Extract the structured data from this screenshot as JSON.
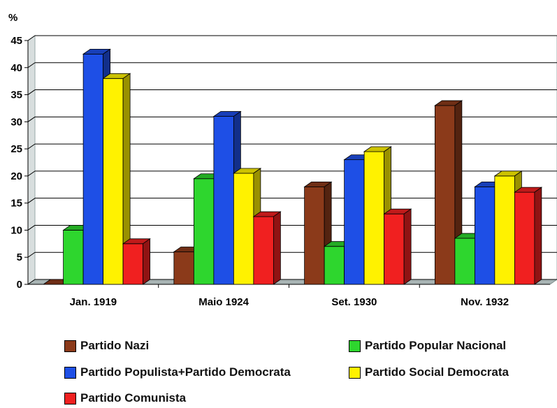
{
  "chart_data": {
    "type": "bar",
    "title": "",
    "ylabel": "%",
    "xlabel": "",
    "ylim": [
      0,
      45
    ],
    "yticks": [
      0,
      5,
      10,
      15,
      20,
      25,
      30,
      35,
      40,
      45
    ],
    "grid": true,
    "legend_position": "bottom",
    "categories": [
      "Jan. 1919",
      "Maio 1924",
      "Set. 1930",
      "Nov. 1932"
    ],
    "series": [
      {
        "name": "Partido Nazi",
        "color": "#8B3A1A",
        "values": [
          0,
          6,
          18,
          33
        ]
      },
      {
        "name": "Partido Popular Nacional",
        "color": "#2ED62E",
        "values": [
          10,
          19.5,
          7,
          8.5
        ]
      },
      {
        "name": "Partido Populista+Partido Democrata",
        "color": "#1E4FE6",
        "values": [
          42.5,
          31,
          23,
          18
        ]
      },
      {
        "name": "Partido Social Democrata",
        "color": "#FFF200",
        "values": [
          38,
          20.5,
          24.5,
          20
        ]
      },
      {
        "name": "Partido Comunista",
        "color": "#F02020",
        "values": [
          7.5,
          12.5,
          13,
          17
        ]
      }
    ]
  }
}
